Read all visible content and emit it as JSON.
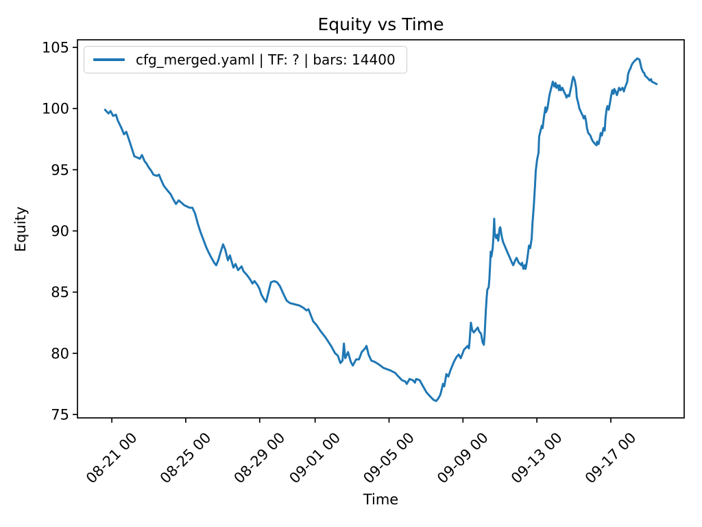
{
  "figure": {
    "title": "Equity vs Time",
    "xlabel": "Time",
    "ylabel": "Equity",
    "background_color": "#ffffff",
    "text_color": "#000000",
    "spine_color": "#000000"
  },
  "legend": {
    "label": "cfg_merged.yaml | TF: ? | bars: 14400",
    "border_color": "#cccccc",
    "swatch_color": "#1f77b4",
    "position": "upper left"
  },
  "chart_data": {
    "type": "line",
    "title": "Equity vs Time",
    "xlabel": "Time",
    "ylabel": "Equity",
    "grid": false,
    "legend_position": "upper left",
    "x_unit": "days since 08-21 00:00",
    "xlim": [
      -1.86,
      30.97
    ],
    "ylim": [
      74.72,
      105.62
    ],
    "xticks": {
      "values": [
        0,
        4,
        8,
        11,
        15,
        19,
        23,
        27
      ],
      "labels": [
        "08-21 00",
        "08-25 00",
        "08-29 00",
        "09-01 00",
        "09-05 00",
        "09-09 00",
        "09-13 00",
        "09-17 00"
      ]
    },
    "yticks": [
      75,
      80,
      85,
      90,
      95,
      100,
      105
    ],
    "series": [
      {
        "name": "cfg_merged.yaml | TF: ? | bars: 14400",
        "color": "#1f77b4",
        "line_width": 3,
        "points": [
          [
            -0.37,
            99.9
          ],
          [
            -0.18,
            99.6
          ],
          [
            -0.07,
            99.8
          ],
          [
            0.07,
            99.4
          ],
          [
            0.22,
            99.5
          ],
          [
            0.33,
            99.0
          ],
          [
            0.52,
            98.4
          ],
          [
            0.66,
            97.9
          ],
          [
            0.78,
            98.1
          ],
          [
            0.92,
            97.5
          ],
          [
            1.07,
            96.8
          ],
          [
            1.22,
            96.1
          ],
          [
            1.37,
            96.0
          ],
          [
            1.51,
            95.9
          ],
          [
            1.63,
            96.2
          ],
          [
            1.77,
            95.7
          ],
          [
            1.88,
            95.5
          ],
          [
            1.99,
            95.2
          ],
          [
            2.14,
            94.9
          ],
          [
            2.25,
            94.6
          ],
          [
            2.44,
            94.5
          ],
          [
            2.55,
            94.6
          ],
          [
            2.66,
            94.2
          ],
          [
            2.81,
            93.7
          ],
          [
            2.96,
            93.4
          ],
          [
            3.18,
            93.0
          ],
          [
            3.32,
            92.6
          ],
          [
            3.47,
            92.2
          ],
          [
            3.62,
            92.5
          ],
          [
            3.77,
            92.3
          ],
          [
            3.92,
            92.1
          ],
          [
            4.06,
            92.0
          ],
          [
            4.21,
            91.9
          ],
          [
            4.36,
            91.9
          ],
          [
            4.51,
            91.4
          ],
          [
            4.65,
            90.6
          ],
          [
            4.8,
            89.9
          ],
          [
            4.95,
            89.3
          ],
          [
            5.1,
            88.7
          ],
          [
            5.25,
            88.2
          ],
          [
            5.39,
            87.8
          ],
          [
            5.54,
            87.4
          ],
          [
            5.65,
            87.2
          ],
          [
            5.76,
            87.6
          ],
          [
            5.87,
            88.2
          ],
          [
            6.02,
            88.9
          ],
          [
            6.13,
            88.5
          ],
          [
            6.28,
            87.6
          ],
          [
            6.39,
            88.0
          ],
          [
            6.5,
            87.4
          ],
          [
            6.58,
            87.0
          ],
          [
            6.69,
            87.3
          ],
          [
            6.83,
            86.8
          ],
          [
            7.02,
            87.1
          ],
          [
            7.13,
            86.7
          ],
          [
            7.31,
            86.4
          ],
          [
            7.5,
            86.0
          ],
          [
            7.61,
            85.7
          ],
          [
            7.72,
            85.9
          ],
          [
            7.87,
            85.6
          ],
          [
            7.98,
            85.3
          ],
          [
            8.09,
            84.8
          ],
          [
            8.24,
            84.4
          ],
          [
            8.35,
            84.2
          ],
          [
            8.46,
            84.9
          ],
          [
            8.61,
            85.8
          ],
          [
            8.79,
            85.9
          ],
          [
            8.94,
            85.8
          ],
          [
            9.09,
            85.5
          ],
          [
            9.27,
            84.9
          ],
          [
            9.46,
            84.3
          ],
          [
            9.64,
            84.1
          ],
          [
            9.9,
            84.0
          ],
          [
            10.16,
            83.9
          ],
          [
            10.38,
            83.7
          ],
          [
            10.53,
            83.5
          ],
          [
            10.64,
            83.6
          ],
          [
            10.82,
            82.9
          ],
          [
            10.9,
            82.6
          ],
          [
            11.08,
            82.3
          ],
          [
            11.3,
            81.8
          ],
          [
            11.56,
            81.3
          ],
          [
            11.86,
            80.6
          ],
          [
            12.08,
            80.0
          ],
          [
            12.23,
            79.8
          ],
          [
            12.37,
            79.2
          ],
          [
            12.48,
            79.4
          ],
          [
            12.56,
            80.8
          ],
          [
            12.63,
            79.6
          ],
          [
            12.78,
            80.1
          ],
          [
            12.93,
            79.3
          ],
          [
            13.04,
            79.0
          ],
          [
            13.22,
            79.5
          ],
          [
            13.37,
            79.5
          ],
          [
            13.52,
            80.1
          ],
          [
            13.7,
            80.4
          ],
          [
            13.78,
            80.6
          ],
          [
            13.89,
            79.9
          ],
          [
            14.04,
            79.4
          ],
          [
            14.22,
            79.3
          ],
          [
            14.44,
            79.1
          ],
          [
            14.7,
            78.8
          ],
          [
            14.89,
            78.7
          ],
          [
            15.07,
            78.6
          ],
          [
            15.33,
            78.4
          ],
          [
            15.51,
            78.1
          ],
          [
            15.7,
            77.8
          ],
          [
            15.88,
            77.7
          ],
          [
            15.96,
            77.5
          ],
          [
            16.11,
            77.9
          ],
          [
            16.29,
            77.8
          ],
          [
            16.4,
            77.6
          ],
          [
            16.47,
            77.9
          ],
          [
            16.66,
            77.8
          ],
          [
            16.84,
            77.3
          ],
          [
            17.03,
            76.8
          ],
          [
            17.21,
            76.5
          ],
          [
            17.4,
            76.2
          ],
          [
            17.55,
            76.1
          ],
          [
            17.66,
            76.3
          ],
          [
            17.77,
            76.6
          ],
          [
            17.84,
            77.0
          ],
          [
            17.92,
            77.5
          ],
          [
            17.99,
            77.3
          ],
          [
            18.1,
            78.3
          ],
          [
            18.21,
            78.1
          ],
          [
            18.32,
            78.6
          ],
          [
            18.51,
            79.3
          ],
          [
            18.65,
            79.7
          ],
          [
            18.77,
            79.9
          ],
          [
            18.88,
            79.6
          ],
          [
            19.06,
            80.3
          ],
          [
            19.25,
            80.6
          ],
          [
            19.32,
            80.4
          ],
          [
            19.36,
            81.0
          ],
          [
            19.43,
            82.5
          ],
          [
            19.5,
            81.9
          ],
          [
            19.58,
            81.7
          ],
          [
            19.69,
            81.9
          ],
          [
            19.8,
            82.1
          ],
          [
            19.87,
            81.8
          ],
          [
            19.98,
            81.6
          ],
          [
            20.06,
            80.9
          ],
          [
            20.13,
            80.7
          ],
          [
            20.17,
            81.5
          ],
          [
            20.24,
            83.6
          ],
          [
            20.28,
            84.5
          ],
          [
            20.32,
            85.2
          ],
          [
            20.39,
            85.4
          ],
          [
            20.43,
            86.1
          ],
          [
            20.46,
            87.0
          ],
          [
            20.5,
            88.3
          ],
          [
            20.54,
            87.9
          ],
          [
            20.61,
            88.6
          ],
          [
            20.65,
            89.5
          ],
          [
            20.69,
            91.0
          ],
          [
            20.72,
            89.8
          ],
          [
            20.8,
            89.4
          ],
          [
            20.87,
            89.7
          ],
          [
            20.91,
            89.2
          ],
          [
            20.98,
            90.2
          ],
          [
            21.02,
            90.3
          ],
          [
            21.09,
            89.6
          ],
          [
            21.17,
            89.1
          ],
          [
            21.28,
            88.7
          ],
          [
            21.42,
            88.2
          ],
          [
            21.54,
            87.8
          ],
          [
            21.65,
            87.4
          ],
          [
            21.72,
            87.2
          ],
          [
            21.83,
            87.6
          ],
          [
            21.9,
            87.8
          ],
          [
            22.02,
            87.4
          ],
          [
            22.16,
            87.2
          ],
          [
            22.2,
            87.4
          ],
          [
            22.27,
            86.9
          ],
          [
            22.35,
            87.2
          ],
          [
            22.39,
            86.9
          ],
          [
            22.46,
            87.5
          ],
          [
            22.53,
            88.3
          ],
          [
            22.57,
            88.8
          ],
          [
            22.64,
            88.6
          ],
          [
            22.72,
            89.4
          ],
          [
            22.76,
            90.6
          ],
          [
            22.83,
            92.0
          ],
          [
            22.9,
            93.8
          ],
          [
            22.94,
            94.9
          ],
          [
            23.01,
            95.8
          ],
          [
            23.09,
            96.4
          ],
          [
            23.12,
            97.7
          ],
          [
            23.2,
            98.2
          ],
          [
            23.27,
            98.6
          ],
          [
            23.31,
            98.4
          ],
          [
            23.38,
            99.3
          ],
          [
            23.46,
            100.1
          ],
          [
            23.49,
            99.7
          ],
          [
            23.57,
            100.0
          ],
          [
            23.64,
            100.7
          ],
          [
            23.68,
            101.1
          ],
          [
            23.83,
            102.0
          ],
          [
            23.86,
            102.2
          ],
          [
            23.94,
            101.8
          ],
          [
            24.01,
            102.1
          ],
          [
            24.05,
            101.7
          ],
          [
            24.12,
            101.9
          ],
          [
            24.2,
            101.5
          ],
          [
            24.23,
            101.9
          ],
          [
            24.31,
            101.5
          ],
          [
            24.38,
            101.7
          ],
          [
            24.49,
            101.3
          ],
          [
            24.56,
            101.1
          ],
          [
            24.6,
            100.9
          ],
          [
            24.68,
            101.1
          ],
          [
            24.75,
            101.0
          ],
          [
            24.79,
            101.3
          ],
          [
            24.86,
            101.8
          ],
          [
            24.93,
            102.4
          ],
          [
            24.97,
            102.6
          ],
          [
            25.05,
            102.3
          ],
          [
            25.12,
            101.7
          ],
          [
            25.16,
            100.9
          ],
          [
            25.23,
            100.5
          ],
          [
            25.3,
            100.0
          ],
          [
            25.42,
            99.6
          ],
          [
            25.49,
            99.4
          ],
          [
            25.53,
            99.2
          ],
          [
            25.6,
            99.4
          ],
          [
            25.67,
            98.9
          ],
          [
            25.71,
            98.4
          ],
          [
            25.78,
            98.0
          ],
          [
            25.89,
            97.8
          ],
          [
            25.97,
            97.5
          ],
          [
            26.04,
            97.3
          ],
          [
            26.15,
            97.1
          ],
          [
            26.23,
            97.0
          ],
          [
            26.26,
            97.3
          ],
          [
            26.34,
            97.1
          ],
          [
            26.41,
            97.6
          ],
          [
            26.45,
            98.0
          ],
          [
            26.52,
            97.8
          ],
          [
            26.6,
            98.4
          ],
          [
            26.67,
            98.2
          ],
          [
            26.71,
            99.2
          ],
          [
            26.78,
            100.0
          ],
          [
            26.82,
            100.2
          ],
          [
            26.89,
            99.9
          ],
          [
            26.97,
            100.6
          ],
          [
            27.0,
            100.9
          ],
          [
            27.08,
            101.5
          ],
          [
            27.15,
            101.2
          ],
          [
            27.19,
            101.6
          ],
          [
            27.26,
            101.4
          ],
          [
            27.33,
            101.1
          ],
          [
            27.37,
            101.3
          ],
          [
            27.45,
            101.7
          ],
          [
            27.52,
            101.5
          ],
          [
            27.63,
            101.7
          ],
          [
            27.71,
            101.4
          ],
          [
            27.74,
            101.6
          ],
          [
            27.89,
            102.2
          ],
          [
            27.93,
            102.8
          ],
          [
            28.0,
            103.1
          ],
          [
            28.07,
            103.3
          ],
          [
            28.11,
            103.5
          ],
          [
            28.18,
            103.7
          ],
          [
            28.29,
            103.9
          ],
          [
            28.37,
            104.0
          ],
          [
            28.44,
            104.1
          ],
          [
            28.55,
            104.0
          ],
          [
            28.66,
            103.3
          ],
          [
            28.74,
            103.0
          ],
          [
            28.81,
            102.9
          ],
          [
            28.85,
            102.7
          ],
          [
            28.92,
            102.6
          ],
          [
            28.99,
            102.5
          ],
          [
            29.1,
            102.3
          ],
          [
            29.18,
            102.4
          ],
          [
            29.22,
            102.2
          ],
          [
            29.36,
            102.1
          ],
          [
            29.48,
            102.0
          ]
        ]
      }
    ]
  }
}
